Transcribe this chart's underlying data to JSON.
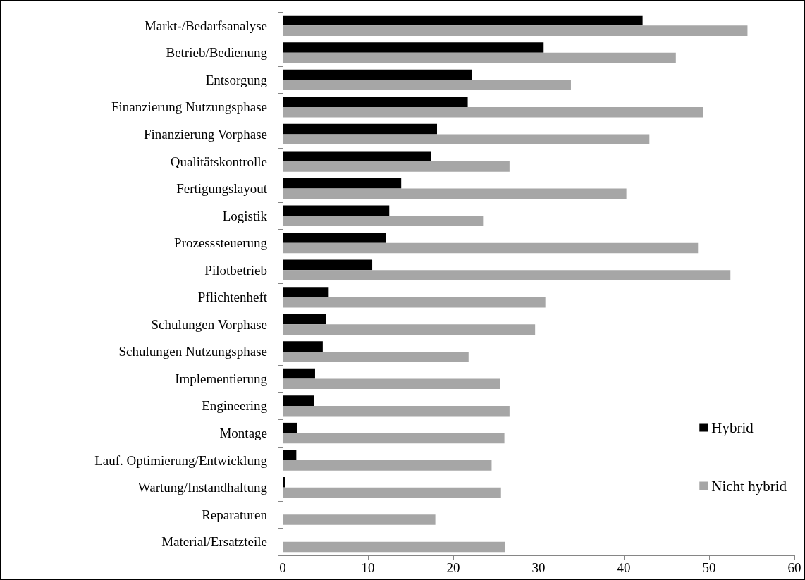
{
  "chart_data": {
    "type": "bar",
    "orientation": "horizontal",
    "categories": [
      "Markt-/Bedarfsanalyse",
      "Betrieb/Bedienung",
      "Entsorgung",
      "Finanzierung Nutzungsphase",
      "Finanzierung Vorphase",
      "Qualitätskontrolle",
      "Fertigungslayout",
      "Logistik",
      "Prozesssteuerung",
      "Pilotbetrieb",
      "Pflichtenheft",
      "Schulungen Vorphase",
      "Schulungen Nutzungsphase",
      "Implementierung",
      "Engineering",
      "Montage",
      "Lauf. Optimierung/Entwicklung",
      "Wartung/Instandhaltung",
      "Reparaturen",
      "Material/Ersatzteile"
    ],
    "series": [
      {
        "name": "Hybrid",
        "color": "#000000",
        "values": [
          42.2,
          30.6,
          22.2,
          21.7,
          18.1,
          17.4,
          13.9,
          12.5,
          12.1,
          10.5,
          5.4,
          5.1,
          4.7,
          3.8,
          3.7,
          1.7,
          1.6,
          0.3,
          0,
          0
        ]
      },
      {
        "name": "Nicht hybrid",
        "color": "#a6a6a6",
        "values": [
          54.5,
          46.1,
          33.8,
          49.3,
          43.0,
          26.6,
          40.3,
          23.5,
          48.7,
          52.5,
          30.8,
          29.6,
          21.8,
          25.5,
          26.6,
          26.0,
          24.5,
          25.6,
          17.9,
          26.1
        ]
      }
    ],
    "xlim": [
      0,
      60
    ],
    "xticks": [
      0,
      10,
      20,
      30,
      40,
      50,
      60
    ],
    "grid": false,
    "legend": "right"
  }
}
